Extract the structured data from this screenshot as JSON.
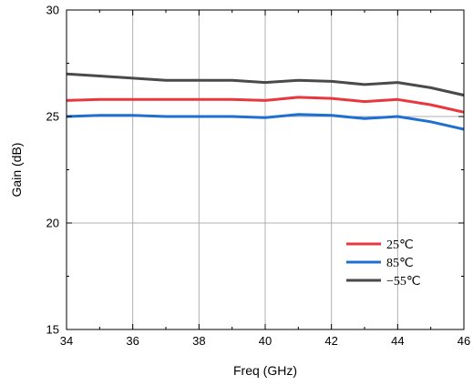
{
  "chart_data": {
    "type": "line",
    "title": "",
    "xlabel": "Freq (GHz)",
    "ylabel": "Gain (dB)",
    "xlim": [
      34,
      46
    ],
    "ylim": [
      15,
      30
    ],
    "x_ticks": [
      34,
      36,
      38,
      40,
      42,
      44,
      46
    ],
    "y_ticks": [
      15,
      20,
      25,
      30
    ],
    "grid": true,
    "legend_position": "lower-right",
    "series": [
      {
        "name": "25℃",
        "color": "#e8383d",
        "x": [
          34,
          35,
          36,
          37,
          38,
          39,
          40,
          41,
          42,
          43,
          44,
          45,
          46
        ],
        "y": [
          25.75,
          25.8,
          25.8,
          25.8,
          25.8,
          25.8,
          25.75,
          25.9,
          25.85,
          25.7,
          25.8,
          25.55,
          25.2
        ]
      },
      {
        "name": "85℃",
        "color": "#1f6fd1",
        "x": [
          34,
          35,
          36,
          37,
          38,
          39,
          40,
          41,
          42,
          43,
          44,
          45,
          46
        ],
        "y": [
          25.0,
          25.05,
          25.05,
          25.0,
          25.0,
          25.0,
          24.95,
          25.1,
          25.05,
          24.9,
          25.0,
          24.75,
          24.4
        ]
      },
      {
        "name": "−55℃",
        "color": "#4a4a4a",
        "x": [
          34,
          35,
          36,
          37,
          38,
          39,
          40,
          41,
          42,
          43,
          44,
          45,
          46
        ],
        "y": [
          27.0,
          26.9,
          26.8,
          26.7,
          26.7,
          26.7,
          26.6,
          26.7,
          26.65,
          26.5,
          26.6,
          26.35,
          26.0
        ]
      }
    ]
  }
}
